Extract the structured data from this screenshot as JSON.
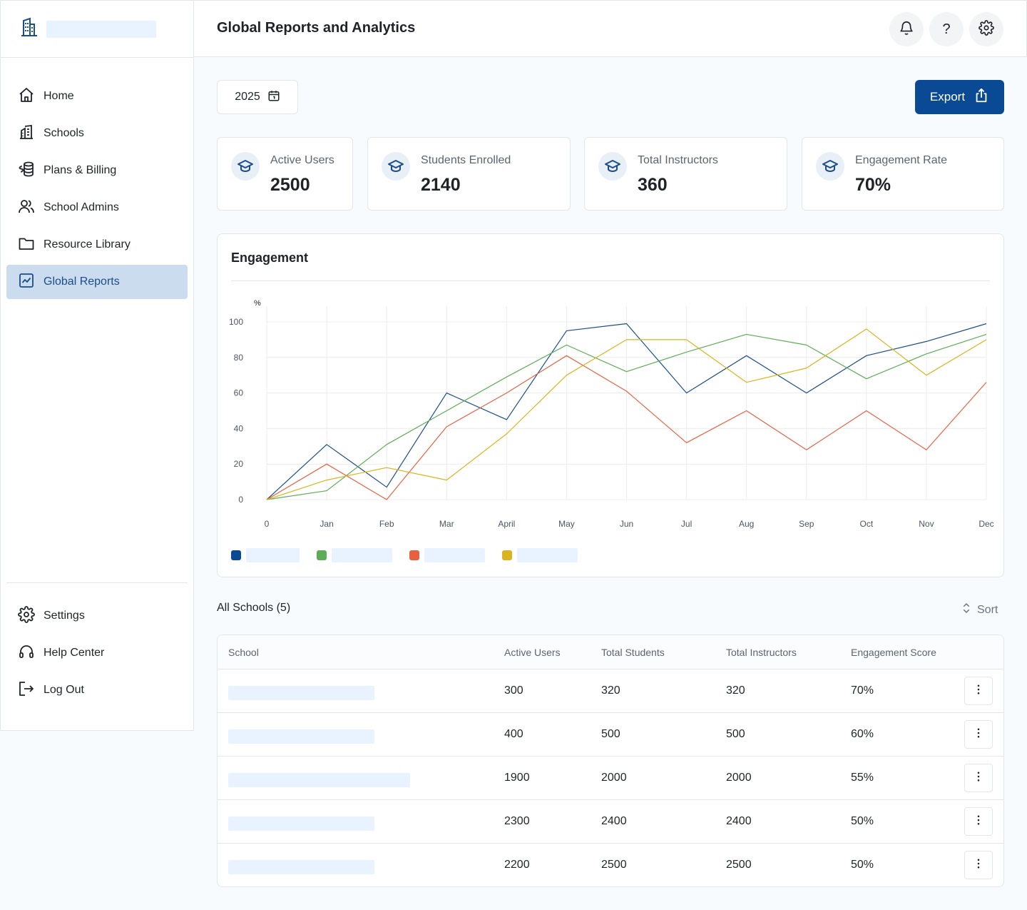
{
  "header": {
    "title": "Global Reports and Analytics"
  },
  "sidebar": {
    "items": [
      {
        "label": "Home",
        "icon": "home-icon"
      },
      {
        "label": "Schools",
        "icon": "building-icon"
      },
      {
        "label": "Plans & Billing",
        "icon": "coins-icon"
      },
      {
        "label": "School Admins",
        "icon": "users-icon"
      },
      {
        "label": "Resource Library",
        "icon": "folder-icon"
      },
      {
        "label": "Global Reports",
        "icon": "chart-icon",
        "active": true
      }
    ],
    "bottom_items": [
      {
        "label": "Settings",
        "icon": "gear-icon"
      },
      {
        "label": "Help Center",
        "icon": "headset-icon"
      },
      {
        "label": "Log Out",
        "icon": "logout-icon"
      }
    ]
  },
  "toolbar": {
    "year": "2025",
    "export_label": "Export"
  },
  "stats": [
    {
      "label": "Active Users",
      "value": "2500"
    },
    {
      "label": "Students Enrolled",
      "value": "2140"
    },
    {
      "label": "Total Instructors",
      "value": "360"
    },
    {
      "label": "Engagement Rate",
      "value": "70%"
    }
  ],
  "chart": {
    "title": "Engagement"
  },
  "chart_data": {
    "type": "line",
    "title": "Engagement",
    "ylabel": "%",
    "xlabel": "",
    "categories": [
      "0",
      "Jan",
      "Feb",
      "Mar",
      "April",
      "May",
      "Jun",
      "Jul",
      "Aug",
      "Sep",
      "Oct",
      "Nov",
      "Dec"
    ],
    "yticks": [
      "0",
      "20",
      "40",
      "60",
      "80",
      "100"
    ],
    "ylim": [
      0,
      100
    ],
    "grid": true,
    "series": [
      {
        "color": "#1b4d8c",
        "values": [
          0,
          31,
          7,
          60,
          45,
          95,
          99,
          60,
          81,
          60,
          81,
          89,
          99
        ]
      },
      {
        "color": "#5cad55",
        "values": [
          0,
          5,
          31,
          50,
          69,
          87,
          72,
          83,
          93,
          87,
          68,
          82,
          93
        ]
      },
      {
        "color": "#e8613f",
        "values": [
          0,
          20,
          0,
          41,
          60,
          81,
          61,
          32,
          50,
          28,
          50,
          28,
          66
        ]
      },
      {
        "color": "#d9b41c",
        "values": [
          0,
          11,
          18,
          11,
          37,
          70,
          90,
          90,
          66,
          74,
          96,
          70,
          90
        ]
      }
    ]
  },
  "schools": {
    "title": "All Schools (5)",
    "sort_label": "Sort",
    "columns": [
      "School",
      "Active Users",
      "Total Students",
      "Total Instructors",
      "Engagement Score"
    ],
    "rows": [
      {
        "active_users": "300",
        "total_students": "320",
        "total_instructors": "320",
        "engagement": "70%"
      },
      {
        "active_users": "400",
        "total_students": "500",
        "total_instructors": "500",
        "engagement": "60%"
      },
      {
        "active_users": "1900",
        "total_students": "2000",
        "total_instructors": "2000",
        "engagement": "55%"
      },
      {
        "active_users": "2300",
        "total_students": "2400",
        "total_instructors": "2400",
        "engagement": "50%"
      },
      {
        "active_users": "2200",
        "total_students": "2500",
        "total_instructors": "2500",
        "engagement": "50%"
      }
    ]
  }
}
